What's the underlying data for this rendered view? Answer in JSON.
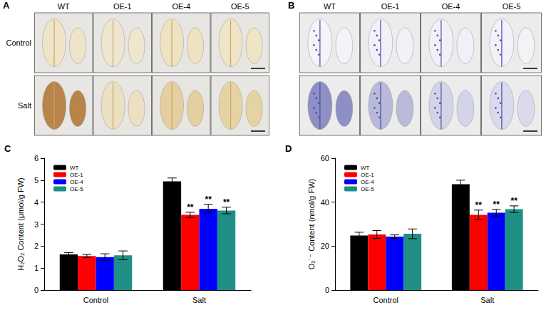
{
  "image_panels": [
    {
      "panel": "A",
      "columns": [
        "WT",
        "OE-1",
        "OE-4",
        "OE-5"
      ],
      "rows": [
        "Control",
        "Salt"
      ]
    },
    {
      "panel": "B",
      "columns": [
        "WT",
        "OE-1",
        "OE-4",
        "OE-5"
      ],
      "rows": [
        "Control",
        "Salt"
      ]
    }
  ],
  "chart_data": [
    {
      "type": "bar",
      "panel": "C",
      "y_label": "H₂O₂ Content (μmol/g FW)",
      "categories": [
        "Control",
        "Salt"
      ],
      "series": [
        {
          "name": "WT",
          "color": "#000000",
          "values": [
            1.62,
            4.95
          ],
          "errors": [
            0.08,
            0.15
          ],
          "annotations": [
            null,
            null
          ]
        },
        {
          "name": "OE-1",
          "color": "#ff0000",
          "values": [
            1.55,
            3.42
          ],
          "errors": [
            0.07,
            0.12
          ],
          "annotations": [
            null,
            "**"
          ]
        },
        {
          "name": "OE-4",
          "color": "#0000ff",
          "values": [
            1.5,
            3.7
          ],
          "errors": [
            0.15,
            0.2
          ],
          "annotations": [
            null,
            "**"
          ]
        },
        {
          "name": "OE-5",
          "color": "#1f8f85",
          "values": [
            1.58,
            3.62
          ],
          "errors": [
            0.2,
            0.15
          ],
          "annotations": [
            null,
            "**"
          ]
        }
      ],
      "ylim": [
        0,
        6
      ],
      "yticks": [
        0,
        1,
        2,
        3,
        4,
        5,
        6
      ],
      "grid": false,
      "legend": "upper left"
    },
    {
      "type": "bar",
      "panel": "D",
      "y_label": "O₂˙⁻ Content (nmol/g FW)",
      "categories": [
        "Control",
        "Salt"
      ],
      "series": [
        {
          "name": "WT",
          "color": "#000000",
          "values": [
            24.8,
            48.2
          ],
          "errors": [
            1.5,
            1.8
          ],
          "annotations": [
            null,
            null
          ]
        },
        {
          "name": "OE-1",
          "color": "#ff0000",
          "values": [
            25.3,
            34.2
          ],
          "errors": [
            1.8,
            2.2
          ],
          "annotations": [
            null,
            "**"
          ]
        },
        {
          "name": "OE-4",
          "color": "#0000ff",
          "values": [
            24.3,
            35.2
          ],
          "errors": [
            0.8,
            1.5
          ],
          "annotations": [
            null,
            "**"
          ]
        },
        {
          "name": "OE-5",
          "color": "#1f8f85",
          "values": [
            25.6,
            36.8
          ],
          "errors": [
            2.2,
            1.5
          ],
          "annotations": [
            null,
            "**"
          ]
        }
      ],
      "ylim": [
        0,
        60
      ],
      "yticks": [
        0,
        20,
        40,
        60
      ],
      "grid": false,
      "legend": "upper left"
    }
  ]
}
